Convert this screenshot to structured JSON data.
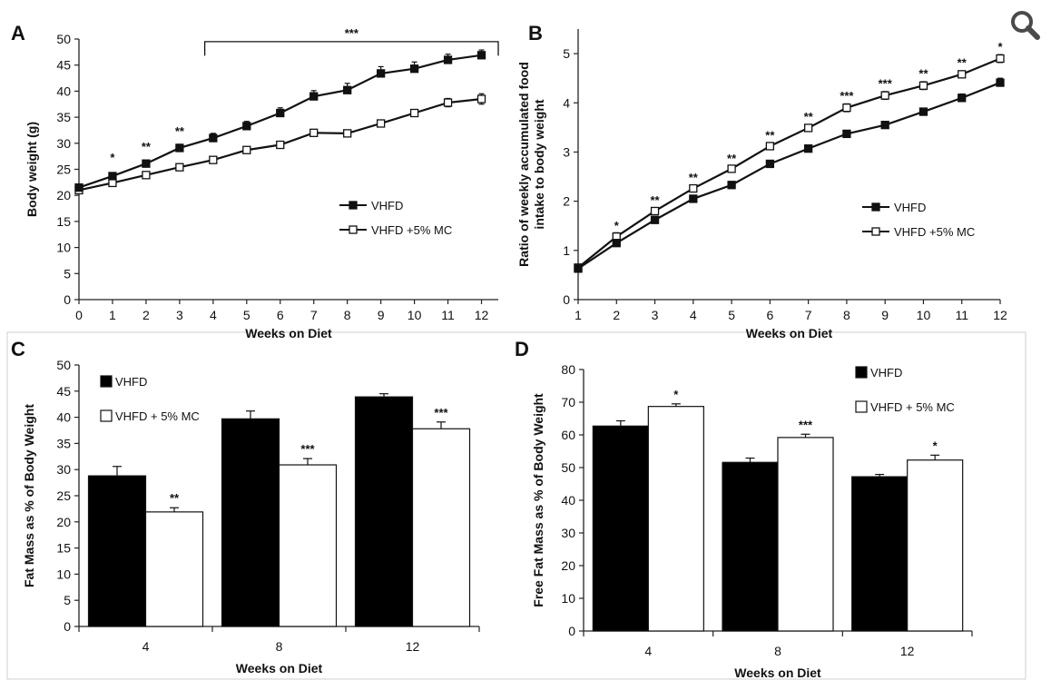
{
  "icons": {
    "zoom": "magnifier-zoom-icon"
  },
  "colors": {
    "ink": "#111111",
    "bar_dark": "#000000",
    "bar_light": "#ffffff",
    "frame": "#cfcfcf"
  },
  "chart_data": [
    {
      "panel": "A",
      "type": "line",
      "xlabel": "Weeks on Diet",
      "ylabel": "Body weight (g)",
      "x": [
        0,
        1,
        2,
        3,
        4,
        5,
        6,
        7,
        8,
        9,
        10,
        11,
        12
      ],
      "xlim": [
        0,
        12.5
      ],
      "ylim": [
        0,
        50
      ],
      "yticks": [
        0,
        5,
        10,
        15,
        20,
        25,
        30,
        35,
        40,
        45,
        50
      ],
      "xticks": [
        0,
        1,
        2,
        3,
        4,
        5,
        6,
        7,
        8,
        9,
        10,
        11,
        12
      ],
      "series": [
        {
          "name": "VHFD",
          "marker": "filled-square",
          "values": [
            21.5,
            23.7,
            26.1,
            29.1,
            31.0,
            33.3,
            35.8,
            39.0,
            40.2,
            43.4,
            44.3,
            46.0,
            46.9
          ],
          "err": [
            0.5,
            0.5,
            0.6,
            0.7,
            0.9,
            0.9,
            1.0,
            1.1,
            1.3,
            1.3,
            1.3,
            1.1,
            1.0
          ]
        },
        {
          "name": "VHFD +5% MC",
          "marker": "open-square",
          "values": [
            21.0,
            22.4,
            23.9,
            25.4,
            26.8,
            28.7,
            29.7,
            32.0,
            31.9,
            33.8,
            35.8,
            37.8,
            38.5
          ],
          "err": [
            0.3,
            0.4,
            0.4,
            0.5,
            0.5,
            0.5,
            0.5,
            0.3,
            0.4,
            0.5,
            0.6,
            0.8,
            1.0
          ]
        }
      ],
      "annotations": [
        {
          "x": 1,
          "text": "*",
          "y": 26.5
        },
        {
          "x": 2,
          "text": "**",
          "y": 28.6
        },
        {
          "x": 3,
          "text": "**",
          "y": 31.5
        }
      ],
      "bracket": {
        "from": 3.75,
        "to": 12.5,
        "y": 49.5,
        "drop": 46.8,
        "text": "***"
      },
      "legend": {
        "position": "center-right"
      }
    },
    {
      "panel": "B",
      "type": "line",
      "xlabel": "Weeks on Diet",
      "ylabel": "Ratio of weekly accumulated food intake to body weight",
      "ylabel_lines": [
        "Ratio of weekly accumulated food",
        "intake to body weight"
      ],
      "x": [
        1,
        2,
        3,
        4,
        5,
        6,
        7,
        8,
        9,
        10,
        11,
        12
      ],
      "xlim": [
        1,
        12
      ],
      "ylim": [
        0,
        5.5
      ],
      "yticks": [
        0,
        1,
        2,
        3,
        4,
        5
      ],
      "xticks": [
        1,
        2,
        3,
        4,
        5,
        6,
        7,
        8,
        9,
        10,
        11,
        12
      ],
      "series": [
        {
          "name": "VHFD",
          "marker": "filled-square",
          "values": [
            0.63,
            1.15,
            1.62,
            2.05,
            2.33,
            2.76,
            3.07,
            3.37,
            3.55,
            3.82,
            4.1,
            4.41
          ],
          "err": [
            0.03,
            0.05,
            0.05,
            0.04,
            0.04,
            0.04,
            0.05,
            0.05,
            0.06,
            0.07,
            0.08,
            0.09
          ]
        },
        {
          "name": "VHFD +5% MC",
          "marker": "open-square",
          "values": [
            0.65,
            1.28,
            1.8,
            2.26,
            2.66,
            3.12,
            3.49,
            3.9,
            4.15,
            4.35,
            4.58,
            4.9
          ],
          "err": [
            0.03,
            0.08,
            0.06,
            0.05,
            0.05,
            0.06,
            0.07,
            0.08,
            0.08,
            0.08,
            0.07,
            0.08
          ]
        }
      ],
      "annotations": [
        {
          "x": 2,
          "text": "*",
          "y": 1.42
        },
        {
          "x": 3,
          "text": "**",
          "y": 1.94
        },
        {
          "x": 4,
          "text": "**",
          "y": 2.4
        },
        {
          "x": 5,
          "text": "**",
          "y": 2.79
        },
        {
          "x": 6,
          "text": "**",
          "y": 3.26
        },
        {
          "x": 7,
          "text": "**",
          "y": 3.64
        },
        {
          "x": 8,
          "text": "***",
          "y": 4.06
        },
        {
          "x": 9,
          "text": "***",
          "y": 4.31
        },
        {
          "x": 10,
          "text": "**",
          "y": 4.51
        },
        {
          "x": 11,
          "text": "**",
          "y": 4.73
        },
        {
          "x": 12,
          "text": "*",
          "y": 5.06
        }
      ],
      "legend": {
        "position": "center-right"
      }
    },
    {
      "panel": "C",
      "type": "bar",
      "xlabel": "Weeks on Diet",
      "ylabel": "Fat Mass as % of Body Weight",
      "categories": [
        "4",
        "8",
        "12"
      ],
      "ylim": [
        0,
        50
      ],
      "yticks": [
        0,
        5,
        10,
        15,
        20,
        25,
        30,
        35,
        40,
        45,
        50
      ],
      "series": [
        {
          "name": "VHFD",
          "fill": "#000000",
          "values": [
            28.8,
            39.7,
            43.9
          ],
          "err": [
            1.8,
            1.5,
            0.6
          ]
        },
        {
          "name": "VHFD + 5% MC",
          "fill": "#ffffff",
          "values": [
            21.9,
            30.9,
            37.8
          ],
          "err": [
            0.8,
            1.2,
            1.3
          ]
        }
      ],
      "annotations": [
        {
          "category": 0,
          "series": 1,
          "text": "**"
        },
        {
          "category": 1,
          "series": 1,
          "text": "***"
        },
        {
          "category": 2,
          "series": 1,
          "text": "***"
        }
      ],
      "legend": {
        "position": "top-left"
      }
    },
    {
      "panel": "D",
      "type": "bar",
      "xlabel": "Weeks on Diet",
      "ylabel": "Free Fat Mass as % of Body Weight",
      "categories": [
        "4",
        "8",
        "12"
      ],
      "ylim": [
        0,
        80
      ],
      "yticks": [
        0,
        10,
        20,
        30,
        40,
        50,
        60,
        70,
        80
      ],
      "series": [
        {
          "name": "VHFD",
          "fill": "#000000",
          "values": [
            62.7,
            51.6,
            47.2
          ],
          "err": [
            1.6,
            1.3,
            0.7
          ]
        },
        {
          "name": "VHFD + 5% MC",
          "fill": "#ffffff",
          "values": [
            68.7,
            59.2,
            52.3
          ],
          "err": [
            0.8,
            1.0,
            1.5
          ]
        }
      ],
      "annotations": [
        {
          "category": 0,
          "series": 1,
          "text": "*"
        },
        {
          "category": 1,
          "series": 1,
          "text": "***"
        },
        {
          "category": 2,
          "series": 1,
          "text": "*"
        }
      ],
      "legend": {
        "position": "top-right"
      }
    }
  ]
}
